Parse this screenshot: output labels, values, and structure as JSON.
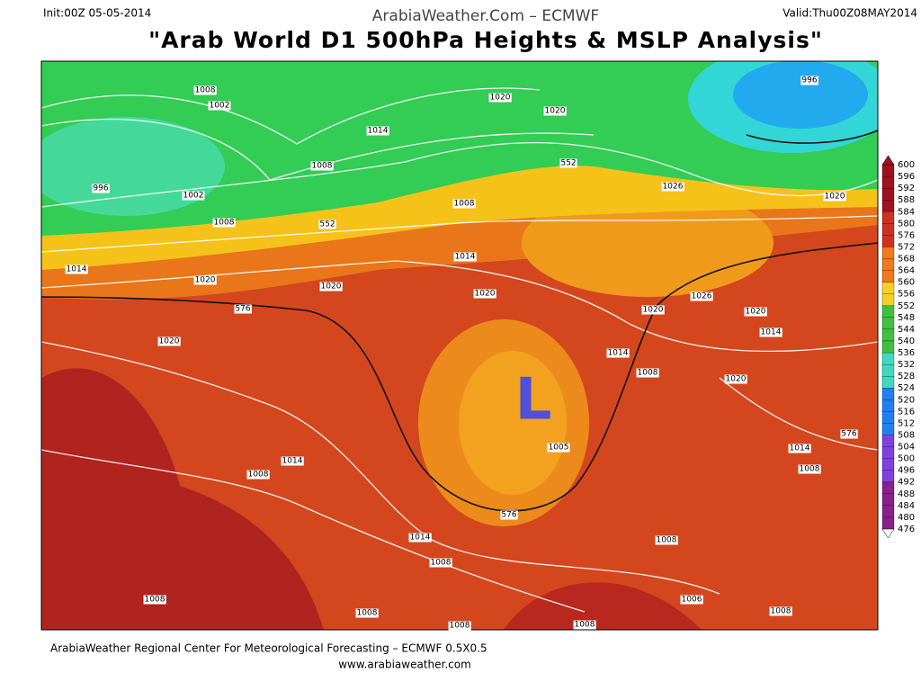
{
  "header": {
    "init": "Init:00Z 05-05-2014",
    "site": "ArabiaWeather.Com – ECMWF",
    "valid": "Valid:Thu00Z08MAY2014",
    "title": "\"Arab World D1 500hPa Heights & MSLP Analysis\""
  },
  "map": {
    "low_marker": "L",
    "contour_labels": [
      1008,
      1002,
      1020,
      1020,
      996,
      1014,
      1008,
      552,
      996,
      1002,
      1008,
      1026,
      1020,
      1008,
      552,
      1014,
      1014,
      1020,
      1020,
      1020,
      1026,
      576,
      1020,
      1020,
      1014,
      1020,
      1014,
      1008,
      1020,
      1005,
      1014,
      576,
      1008,
      1014,
      1008,
      576,
      1014,
      1008,
      1008,
      1008,
      1006,
      1008,
      1008,
      1008,
      1008
    ]
  },
  "colorbar": {
    "labels": [
      600,
      596,
      592,
      588,
      584,
      580,
      576,
      572,
      568,
      564,
      560,
      556,
      552,
      548,
      544,
      540,
      536,
      532,
      528,
      524,
      520,
      516,
      512,
      508,
      504,
      500,
      496,
      492,
      488,
      484,
      480,
      476
    ]
  },
  "footer": {
    "center": "ArabiaWeather Regional Center For Meteorological Forecasting – ECMWF 0.5X0.5",
    "url": "www.arabiaweather.com"
  }
}
